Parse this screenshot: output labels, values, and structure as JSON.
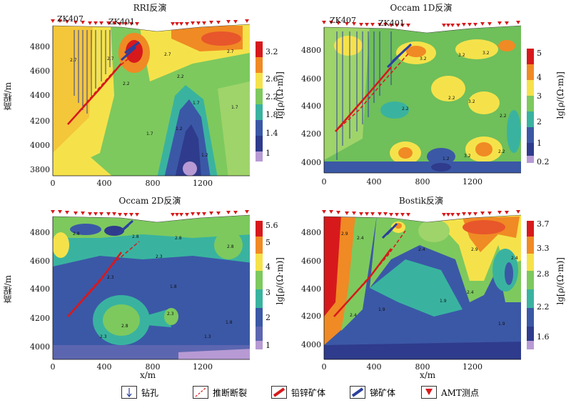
{
  "panels": [
    {
      "id": "rri",
      "title": "RRI反演",
      "ylabel": "高程/m",
      "yticks": [
        "4800",
        "4600",
        "4400",
        "4200",
        "4000",
        "3800"
      ],
      "xticks": [
        "0",
        "400",
        "800",
        "1200"
      ],
      "cbticks": [
        "3.2",
        "2.6",
        "2.2",
        "1.8",
        "1.4",
        "1"
      ],
      "cblabel": "lg[ρ/(Ω·m)]",
      "contours": [
        "2.7",
        "2.7",
        "2.7",
        "2.7",
        "2.2",
        "2.2",
        "1.7",
        "1.7",
        "1.2",
        "1.2",
        "1.7"
      ]
    },
    {
      "id": "occam1d",
      "title": "Occam 1D反演",
      "ylabel": "",
      "yticks": [
        "4800",
        "4600",
        "4400",
        "4200",
        "4000"
      ],
      "xticks": [
        "0",
        "400",
        "800",
        "1200"
      ],
      "cbticks": [
        "5",
        "4",
        "3",
        "2",
        "1",
        "0.2"
      ],
      "cblabel": "lg[ρ/(Ω·m)]",
      "contours": [
        "3.2",
        "3.2",
        "3.2",
        "2.2",
        "2.2",
        "3.2",
        "2.2",
        "1.2",
        "3.2",
        "2.2"
      ]
    },
    {
      "id": "occam2d",
      "title": "Occam 2D反演",
      "ylabel": "高程/m",
      "yticks": [
        "4800",
        "4600",
        "4400",
        "4200",
        "4000"
      ],
      "xticks": [
        "0",
        "400",
        "800",
        "1200"
      ],
      "cbticks": [
        "5.6",
        "5",
        "4",
        "3",
        "2",
        "1"
      ],
      "cblabel": "lg[ρ/(Ω·m)]",
      "contours": [
        "2.8",
        "2.8",
        "2.8",
        "2.3",
        "2.3",
        "1.8",
        "2.8",
        "2.3",
        "1.3",
        "2.3",
        "1.8",
        "2.8"
      ]
    },
    {
      "id": "bostik",
      "title": "Bostik反演",
      "ylabel": "",
      "yticks": [
        "4800",
        "4600",
        "4400",
        "4200",
        "4000"
      ],
      "xticks": [
        "0",
        "400",
        "800",
        "1200"
      ],
      "cbticks": [
        "3.7",
        "3.3",
        "2.8",
        "2.2",
        "1.6"
      ],
      "cblabel": "lg[ρ/(Ω·m)]",
      "contours": [
        "2.9",
        "2.4",
        "2.4",
        "2.9",
        "2.4",
        "2.4",
        "1.9",
        "1.9",
        "2.4",
        "1.9"
      ]
    }
  ],
  "wells": [
    "ZK407",
    "ZK401"
  ],
  "stations": [
    "1",
    "2",
    "3",
    "4",
    "5",
    "6",
    "7",
    "8",
    "9",
    "10",
    "11",
    "12",
    "13",
    "14",
    "19",
    "20",
    "21",
    "22",
    "23",
    "24",
    "25",
    "26",
    "27",
    "28",
    "29",
    "30"
  ],
  "xlabel": "x/m",
  "legend": [
    {
      "key": "drill",
      "label": "钻孔"
    },
    {
      "key": "fault",
      "label": "推断断裂"
    },
    {
      "key": "pbzn",
      "label": "铅锌矿体"
    },
    {
      "key": "sb",
      "label": "锑矿体"
    },
    {
      "key": "amt",
      "label": "AMT测点"
    }
  ],
  "colors": {
    "red": "#d7191c",
    "orange": "#f08a24",
    "yellow": "#f5e24b",
    "green": "#7dc95e",
    "teal": "#39b3a0",
    "blue": "#3b58a6",
    "navy": "#2f3b8c",
    "purple": "#b79ad4",
    "fault": "#d7191c",
    "sb": "#2b3f9e"
  }
}
